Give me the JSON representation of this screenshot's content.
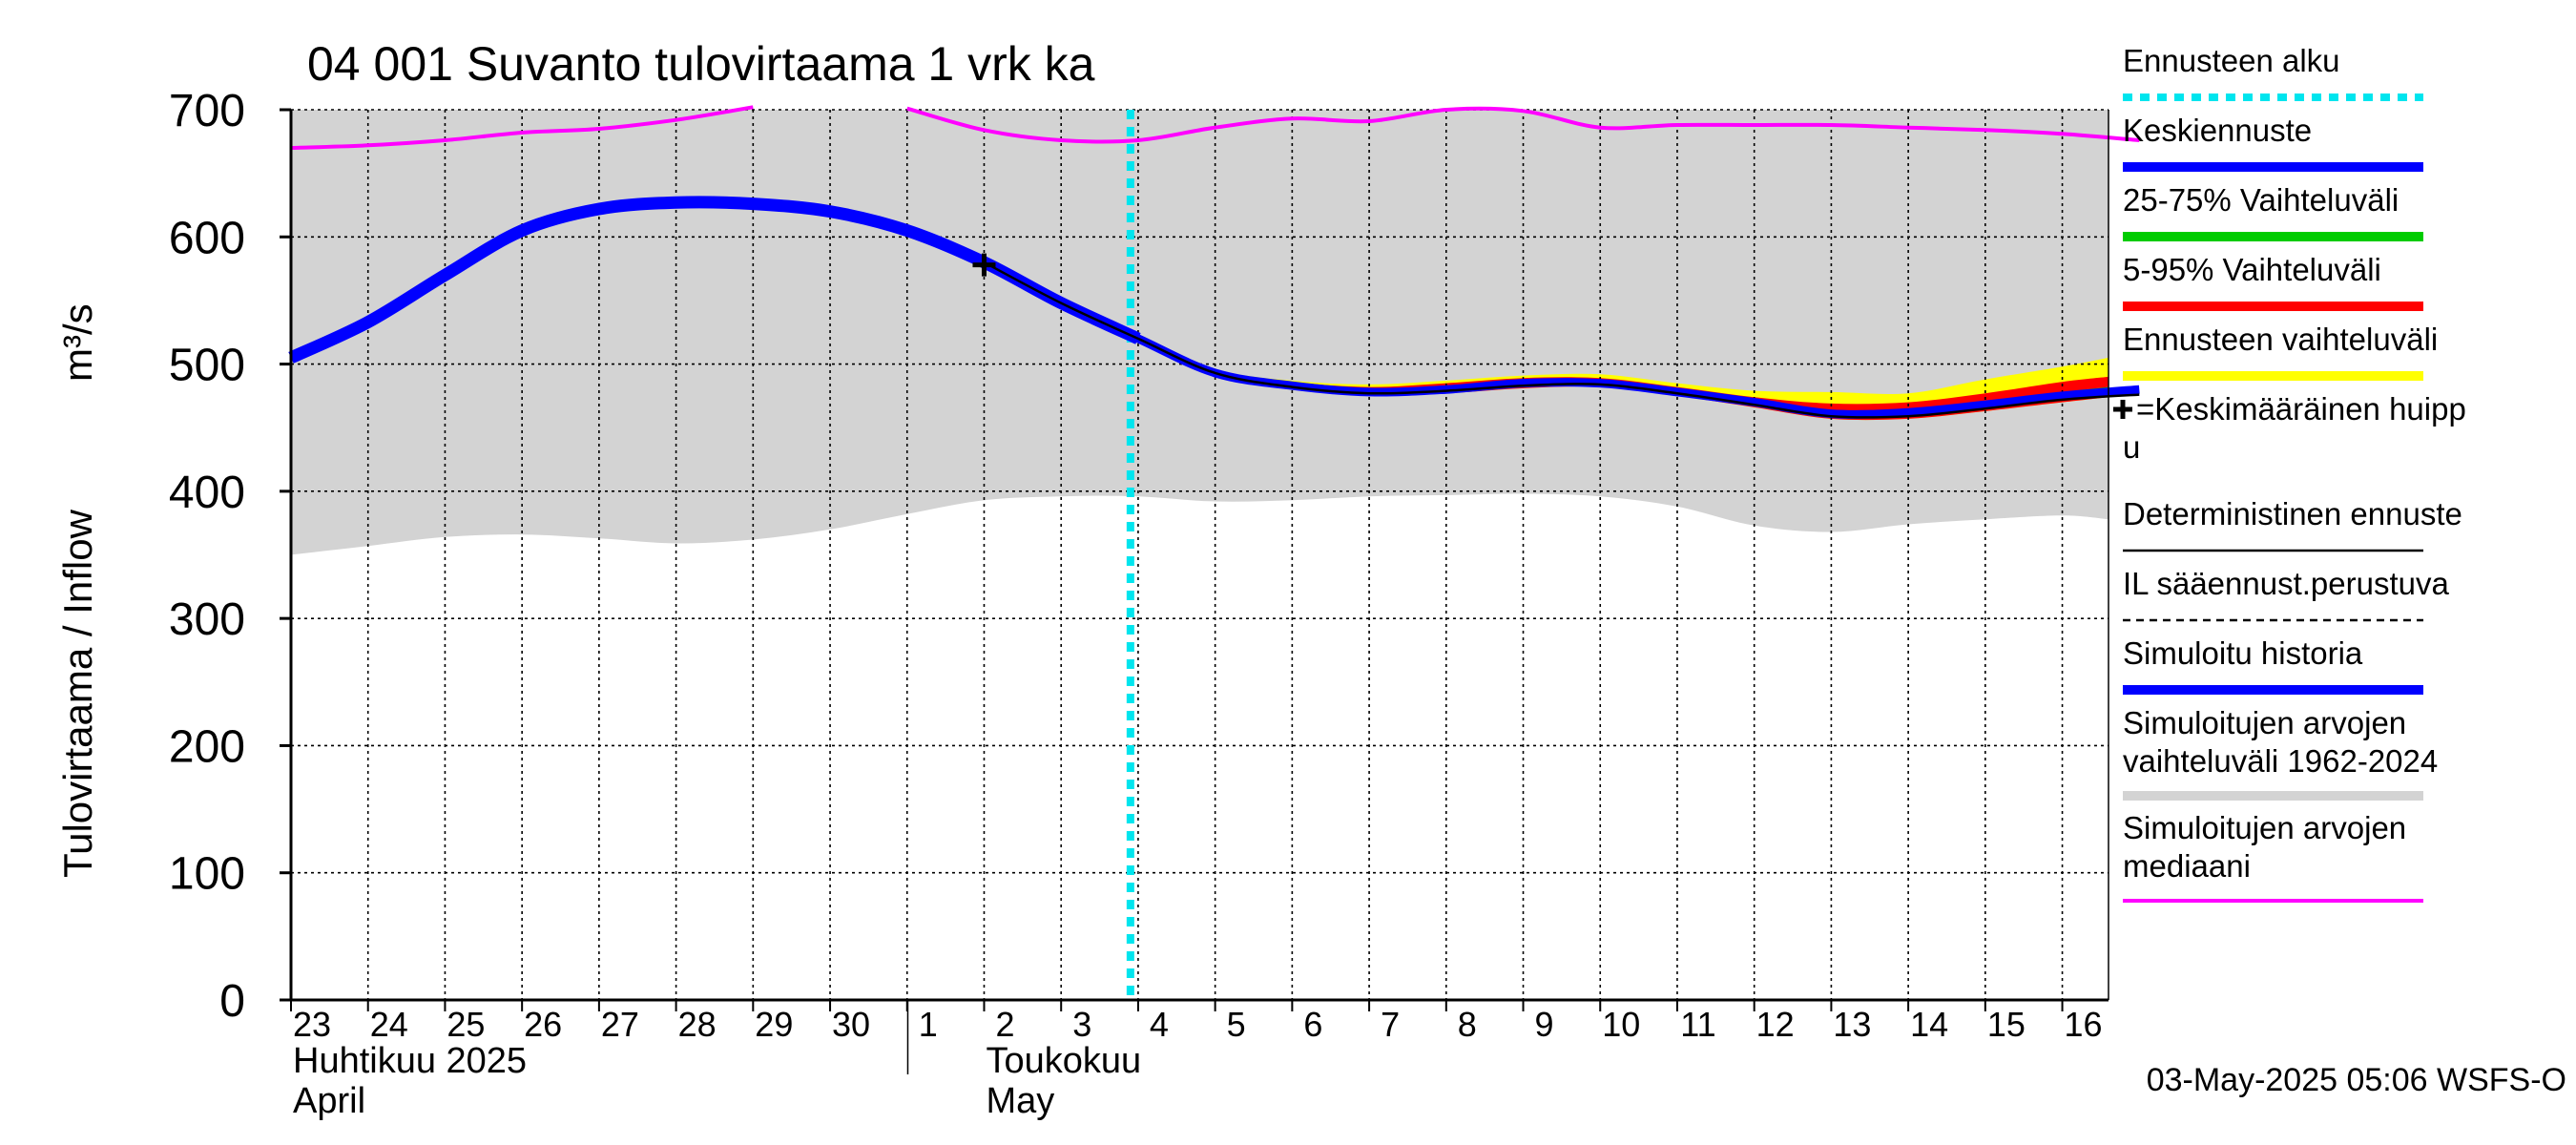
{
  "chart_data": {
    "type": "line",
    "title": "04 001 Suvanto tulovirtaama 1 vrk ka",
    "ylabel": "Tulovirtaama / Inflow",
    "yunit": "m³/s",
    "ylim": [
      0,
      700
    ],
    "yticks": [
      0,
      100,
      200,
      300,
      400,
      500,
      600,
      700
    ],
    "x_days": [
      "23",
      "24",
      "25",
      "26",
      "27",
      "28",
      "29",
      "30",
      "1",
      "2",
      "3",
      "4",
      "5",
      "6",
      "7",
      "8",
      "9",
      "10",
      "11",
      "12",
      "13",
      "14",
      "15",
      "16"
    ],
    "month_labels": [
      {
        "fi": "Huhtikuu  2025",
        "en": "April",
        "start_index": 0
      },
      {
        "fi": "Toukokuu",
        "en": "May",
        "start_index": 9
      }
    ],
    "forecast_start_index": 10.9,
    "peak_marker": {
      "x_index": 9,
      "value": 578
    },
    "series": [
      {
        "name": "Simuloitu historia",
        "color": "#0000ff",
        "x": [
          0,
          1,
          2,
          3,
          4,
          5,
          6,
          7,
          8,
          9,
          10,
          11
        ],
        "values": [
          505,
          533,
          570,
          605,
          622,
          627,
          626,
          620,
          605,
          580,
          548,
          520
        ]
      },
      {
        "name": "Keskiennuste",
        "color": "#0000ff",
        "x": [
          9,
          10,
          11,
          12,
          13,
          14,
          15,
          16,
          17,
          18,
          19,
          20,
          21,
          22,
          23,
          24
        ],
        "values": [
          580,
          548,
          520,
          493,
          483,
          478,
          480,
          485,
          485,
          478,
          470,
          461,
          462,
          468,
          475,
          480
        ]
      },
      {
        "name": "Deterministinen ennuste",
        "color": "#000000",
        "x": [
          9,
          10,
          11,
          12,
          13,
          14,
          15,
          16,
          17,
          18,
          19,
          20,
          21,
          22,
          23,
          24
        ],
        "values": [
          580,
          548,
          520,
          493,
          482,
          477,
          479,
          483,
          484,
          477,
          468,
          459,
          459,
          465,
          472,
          476
        ]
      },
      {
        "name": "Simuloitujen arvojen mediaani",
        "color": "#ff00ff",
        "x": [
          0,
          1,
          2,
          3,
          4,
          5,
          6,
          8,
          9,
          10,
          11,
          12,
          13,
          14,
          15,
          16,
          17,
          18,
          19,
          20,
          21,
          22,
          23,
          24
        ],
        "values": [
          670,
          672,
          676,
          682,
          685,
          692,
          702,
          701,
          684,
          676,
          676,
          686,
          693,
          691,
          700,
          699,
          686,
          688,
          688,
          688,
          686,
          684,
          681,
          676
        ]
      }
    ],
    "bands": [
      {
        "name": "Simuloitujen arvojen vaihteluväli 1962-2024",
        "color": "#d3d3d3",
        "x": [
          0,
          1,
          2,
          3,
          4,
          5,
          6,
          7,
          8,
          9,
          10,
          11,
          12,
          13,
          14,
          15,
          16,
          17,
          18,
          19,
          20,
          21,
          22,
          23,
          24
        ],
        "low": [
          350,
          357,
          364,
          366,
          363,
          359,
          362,
          370,
          382,
          393,
          396,
          396,
          392,
          393,
          396,
          397,
          398,
          396,
          388,
          373,
          368,
          374,
          378,
          381,
          378
        ],
        "high": [
          700,
          700,
          700,
          700,
          700,
          700,
          700,
          700,
          700,
          700,
          700,
          700,
          700,
          700,
          700,
          700,
          700,
          700,
          700,
          700,
          700,
          700,
          700,
          700,
          700
        ]
      },
      {
        "name": "Ennusteen vaihteluväli",
        "color": "#ffff00",
        "x": [
          9,
          10,
          11,
          12,
          13,
          14,
          15,
          16,
          17,
          18,
          19,
          20,
          21,
          22,
          23,
          24
        ],
        "low": [
          578,
          546,
          518,
          491,
          481,
          476,
          477,
          481,
          482,
          475,
          466,
          457,
          457,
          463,
          470,
          474
        ],
        "high": [
          582,
          550,
          522,
          496,
          487,
          484,
          487,
          491,
          492,
          485,
          479,
          478,
          477,
          488,
          498,
          505
        ]
      },
      {
        "name": "5-95% Vaihteluväli",
        "color": "#ff0000",
        "x": [
          9,
          10,
          11,
          12,
          13,
          14,
          15,
          16,
          17,
          18,
          19,
          20,
          21,
          22,
          23,
          24
        ],
        "low": [
          578,
          546,
          518,
          491,
          481,
          476,
          477,
          481,
          482,
          475,
          466,
          457,
          457,
          463,
          470,
          474
        ],
        "high": [
          582,
          550,
          522,
          495,
          486,
          482,
          485,
          489,
          489,
          482,
          474,
          469,
          470,
          477,
          486,
          490
        ]
      },
      {
        "name": "25-75% Vaihteluväli",
        "color": "#00cc00",
        "x": [
          9,
          10,
          11,
          12,
          13,
          14,
          15,
          16,
          17,
          18,
          19,
          20,
          21,
          22,
          23,
          24
        ],
        "low": [
          579,
          547,
          519,
          492,
          482,
          477,
          478,
          483,
          483,
          476,
          468,
          459,
          459,
          465,
          472,
          476
        ],
        "high": [
          581,
          549,
          521,
          494,
          484,
          479,
          481,
          486,
          486,
          479,
          471,
          463,
          464,
          470,
          478,
          482
        ]
      }
    ],
    "legend": {
      "placement": "right",
      "items": [
        {
          "label": "Ennusteen alku",
          "color": "#00e5ee",
          "style": "dotted"
        },
        {
          "label": "Keskiennuste",
          "color": "#0000ff",
          "style": "thick"
        },
        {
          "label": "25-75% Vaihteluväli",
          "color": "#00cc00",
          "style": "thick"
        },
        {
          "label": "5-95% Vaihteluväli",
          "color": "#ff0000",
          "style": "thick"
        },
        {
          "label": "Ennusteen vaihteluväli",
          "color": "#ffff00",
          "style": "thick"
        },
        {
          "label": "=Keskimääräinen huipp",
          "label2": "u",
          "color": "#000000",
          "style": "marker"
        },
        {
          "label": "Deterministinen ennuste",
          "color": "#000000",
          "style": "thin"
        },
        {
          "label": "IL sääennust.perustuva",
          "color": "#000000",
          "style": "dashed"
        },
        {
          "label": "Simuloitu historia",
          "color": "#0000ff",
          "style": "thick"
        },
        {
          "label": "Simuloitujen arvojen",
          "label2": "vaihteluväli 1962-2024",
          "color": "#d3d3d3",
          "style": "thick"
        },
        {
          "label": "Simuloitujen arvojen",
          "label2": "mediaani",
          "color": "#ff00ff",
          "style": "medium"
        }
      ]
    },
    "footer": "03-May-2025 05:06 WSFS-O"
  }
}
